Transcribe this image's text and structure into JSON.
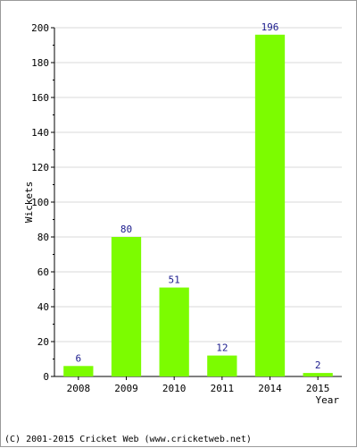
{
  "chart_data": {
    "type": "bar",
    "categories": [
      "2008",
      "2009",
      "2010",
      "2011",
      "2014",
      "2015"
    ],
    "values": [
      6,
      80,
      51,
      12,
      196,
      2
    ],
    "xlabel": "Year",
    "ylabel": "Wickets",
    "ylim": [
      0,
      200
    ],
    "yticks": [
      "0",
      "20",
      "40",
      "60",
      "80",
      "100",
      "120",
      "140",
      "160",
      "180",
      "200"
    ],
    "grid": true,
    "bar_color": "#7cfc00"
  },
  "footer": {
    "copyright": "(C) 2001-2015 Cricket Web (www.cricketweb.net)"
  }
}
